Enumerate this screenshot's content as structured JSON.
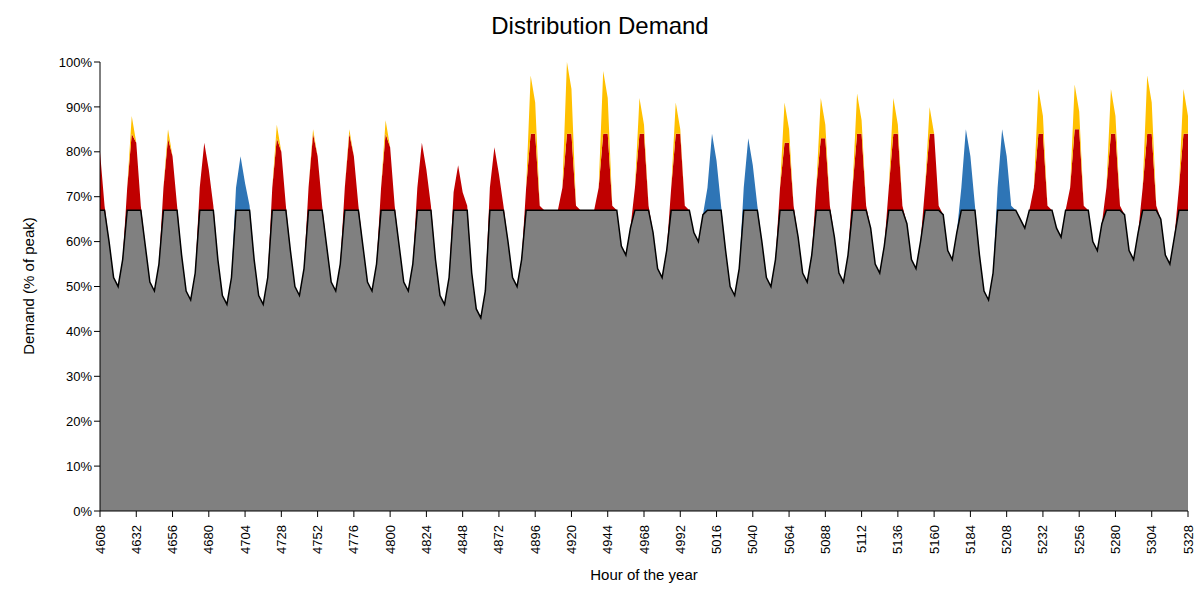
{
  "chart_data": {
    "type": "area",
    "title": "Distribution Demand",
    "x_label": "Hour of the year",
    "y_label": "Demand (% of peak)",
    "stacked": true,
    "grid": false,
    "xlim": [
      4608,
      5328
    ],
    "xticks": [
      4608,
      4632,
      4656,
      4680,
      4704,
      4728,
      4752,
      4776,
      4800,
      4824,
      4848,
      4872,
      4896,
      4920,
      4944,
      4968,
      4992,
      5016,
      5040,
      5064,
      5088,
      5112,
      5136,
      5160,
      5184,
      5208,
      5232,
      5256,
      5280,
      5304,
      5328
    ],
    "ylim": [
      0,
      100
    ],
    "yticks": [
      {
        "value": 0,
        "label": "0%"
      },
      {
        "value": 10,
        "label": "10%"
      },
      {
        "value": 20,
        "label": "20%"
      },
      {
        "value": 30,
        "label": "30%"
      },
      {
        "value": 40,
        "label": "40%"
      },
      {
        "value": 50,
        "label": "50%"
      },
      {
        "value": 60,
        "label": "60%"
      },
      {
        "value": 70,
        "label": "70%"
      },
      {
        "value": 80,
        "label": "80%"
      },
      {
        "value": 90,
        "label": "90%"
      },
      {
        "value": 100,
        "label": "100%"
      }
    ],
    "x": [
      4608,
      4611,
      4614,
      4617,
      4620,
      4623,
      4626,
      4629,
      4632,
      4635,
      4638,
      4641,
      4644,
      4647,
      4650,
      4653,
      4656,
      4659,
      4662,
      4665,
      4668,
      4671,
      4674,
      4677,
      4680,
      4683,
      4686,
      4689,
      4692,
      4695,
      4698,
      4701,
      4704,
      4707,
      4710,
      4713,
      4716,
      4719,
      4722,
      4725,
      4728,
      4731,
      4734,
      4737,
      4740,
      4743,
      4746,
      4749,
      4752,
      4755,
      4758,
      4761,
      4764,
      4767,
      4770,
      4773,
      4776,
      4779,
      4782,
      4785,
      4788,
      4791,
      4794,
      4797,
      4800,
      4803,
      4806,
      4809,
      4812,
      4815,
      4818,
      4821,
      4824,
      4827,
      4830,
      4833,
      4836,
      4839,
      4842,
      4845,
      4848,
      4851,
      4854,
      4857,
      4860,
      4863,
      4866,
      4869,
      4872,
      4875,
      4878,
      4881,
      4884,
      4887,
      4890,
      4893,
      4896,
      4899,
      4902,
      4905,
      4908,
      4911,
      4914,
      4917,
      4920,
      4923,
      4926,
      4929,
      4932,
      4935,
      4938,
      4941,
      4944,
      4947,
      4950,
      4953,
      4956,
      4959,
      4962,
      4965,
      4968,
      4971,
      4974,
      4977,
      4980,
      4983,
      4986,
      4989,
      4992,
      4995,
      4998,
      5001,
      5004,
      5007,
      5010,
      5013,
      5016,
      5019,
      5022,
      5025,
      5028,
      5031,
      5034,
      5037,
      5040,
      5043,
      5046,
      5049,
      5052,
      5055,
      5058,
      5061,
      5064,
      5067,
      5070,
      5073,
      5076,
      5079,
      5082,
      5085,
      5088,
      5091,
      5094,
      5097,
      5100,
      5103,
      5106,
      5109,
      5112,
      5115,
      5118,
      5121,
      5124,
      5127,
      5130,
      5133,
      5136,
      5139,
      5142,
      5145,
      5148,
      5151,
      5154,
      5157,
      5160,
      5163,
      5166,
      5169,
      5172,
      5175,
      5178,
      5181,
      5184,
      5187,
      5190,
      5193,
      5196,
      5199,
      5202,
      5205,
      5208,
      5211,
      5214,
      5217,
      5220,
      5223,
      5226,
      5229,
      5232,
      5235,
      5238,
      5241,
      5244,
      5247,
      5250,
      5253,
      5256,
      5259,
      5262,
      5265,
      5268,
      5271,
      5274,
      5277,
      5280,
      5283,
      5286,
      5289,
      5292,
      5295,
      5298,
      5301,
      5304,
      5307,
      5310,
      5313,
      5316,
      5319,
      5322,
      5325,
      5328
    ],
    "series": [
      {
        "color": "#808080",
        "values": [
          67,
          67,
          60,
          52,
          50,
          56,
          67,
          67,
          67,
          67,
          59,
          51,
          49,
          55,
          67,
          67,
          67,
          67,
          57,
          49,
          47,
          53,
          67,
          67,
          67,
          67,
          56,
          48,
          46,
          52,
          67,
          67,
          67,
          67,
          56,
          48,
          46,
          52,
          67,
          67,
          67,
          67,
          58,
          50,
          48,
          54,
          67,
          67,
          67,
          67,
          59,
          51,
          49,
          55,
          67,
          67,
          67,
          67,
          59,
          51,
          49,
          55,
          67,
          67,
          67,
          67,
          59,
          51,
          49,
          55,
          67,
          67,
          67,
          67,
          56,
          48,
          46,
          52,
          67,
          67,
          67,
          67,
          53,
          45,
          43,
          49,
          67,
          67,
          67,
          67,
          60,
          52,
          50,
          56,
          67,
          67,
          67,
          67,
          67,
          67,
          67,
          67,
          67,
          67,
          67,
          67,
          67,
          67,
          67,
          67,
          67,
          67,
          67,
          67,
          67,
          59,
          57,
          63,
          67,
          67,
          67,
          67,
          62,
          54,
          52,
          58,
          67,
          67,
          67,
          67,
          67,
          62,
          60,
          66,
          67,
          67,
          67,
          67,
          58,
          50,
          48,
          54,
          67,
          67,
          67,
          67,
          60,
          52,
          50,
          56,
          67,
          67,
          67,
          67,
          61,
          53,
          51,
          57,
          67,
          67,
          67,
          67,
          61,
          53,
          51,
          57,
          67,
          67,
          67,
          67,
          63,
          55,
          53,
          59,
          67,
          67,
          67,
          67,
          64,
          56,
          54,
          60,
          67,
          67,
          67,
          67,
          66,
          58,
          56,
          62,
          67,
          67,
          67,
          67,
          57,
          49,
          47,
          53,
          67,
          67,
          67,
          67,
          67,
          65,
          63,
          67,
          67,
          67,
          67,
          67,
          67,
          63,
          61,
          67,
          67,
          67,
          67,
          67,
          67,
          60,
          58,
          64,
          67,
          67,
          67,
          67,
          66,
          58,
          56,
          62,
          67,
          67,
          67,
          67,
          65,
          57,
          55,
          61,
          67,
          67,
          67
        ]
      },
      {
        "color": "#2e75b6",
        "values": [
          0,
          0,
          0,
          0,
          0,
          0,
          0,
          0,
          0,
          0,
          0,
          0,
          0,
          0,
          0,
          0,
          0,
          0,
          0,
          0,
          0,
          0,
          0,
          0,
          0,
          0,
          0,
          0,
          0,
          0,
          5,
          12,
          6,
          1,
          0,
          0,
          0,
          0,
          0,
          0,
          0,
          0,
          0,
          0,
          0,
          0,
          0,
          0,
          0,
          0,
          0,
          0,
          0,
          0,
          0,
          0,
          0,
          0,
          0,
          0,
          0,
          0,
          0,
          0,
          0,
          0,
          0,
          0,
          0,
          0,
          0,
          0,
          0,
          0,
          0,
          0,
          0,
          0,
          0,
          0,
          0,
          0,
          0,
          0,
          0,
          0,
          0,
          0,
          0,
          0,
          0,
          0,
          0,
          0,
          0,
          0,
          0,
          0,
          0,
          0,
          0,
          0,
          0,
          0,
          0,
          0,
          0,
          0,
          0,
          0,
          0,
          0,
          0,
          0,
          0,
          0,
          0,
          0,
          0,
          0,
          0,
          0,
          0,
          0,
          0,
          0,
          0,
          0,
          0,
          0,
          0,
          0,
          0,
          0,
          5,
          17,
          11,
          1,
          0,
          0,
          0,
          0,
          5,
          16,
          10,
          1,
          0,
          0,
          0,
          0,
          0,
          0,
          0,
          0,
          0,
          0,
          0,
          0,
          0,
          0,
          0,
          0,
          0,
          0,
          0,
          0,
          0,
          0,
          0,
          0,
          0,
          0,
          0,
          0,
          0,
          0,
          0,
          0,
          0,
          0,
          0,
          0,
          0,
          0,
          0,
          0,
          0,
          0,
          0,
          0,
          5,
          18,
          12,
          1,
          0,
          0,
          0,
          0,
          5,
          18,
          12,
          1,
          0,
          0,
          0,
          0,
          0,
          0,
          0,
          0,
          0,
          0,
          0,
          0,
          0,
          0,
          0,
          0,
          0,
          0,
          0,
          0,
          0,
          0,
          0,
          0,
          0,
          0,
          0,
          0,
          0,
          0,
          0,
          0,
          0,
          0,
          0,
          0,
          0,
          0,
          0
        ]
      },
      {
        "color": "#c00000",
        "values": [
          13,
          1,
          0,
          0,
          0,
          0,
          5,
          17,
          15,
          1,
          0,
          0,
          0,
          0,
          5,
          16,
          12,
          1,
          0,
          0,
          0,
          0,
          5,
          15,
          9,
          1,
          0,
          0,
          0,
          0,
          0,
          0,
          0,
          0,
          0,
          0,
          0,
          0,
          5,
          16,
          13,
          1,
          0,
          0,
          0,
          0,
          5,
          17,
          12,
          1,
          0,
          0,
          0,
          0,
          5,
          17,
          12,
          1,
          0,
          0,
          0,
          0,
          5,
          17,
          14,
          1,
          0,
          0,
          0,
          0,
          5,
          15,
          9,
          1,
          0,
          0,
          0,
          0,
          4,
          10,
          4,
          1,
          0,
          0,
          0,
          0,
          5,
          14,
          8,
          1,
          0,
          0,
          0,
          0,
          5,
          17,
          17,
          1,
          0,
          0,
          0,
          0,
          5,
          17,
          17,
          1,
          0,
          0,
          0,
          0,
          5,
          17,
          17,
          1,
          0,
          0,
          0,
          0,
          5,
          17,
          17,
          1,
          0,
          0,
          0,
          0,
          5,
          17,
          17,
          1,
          0,
          0,
          0,
          0,
          0,
          0,
          0,
          0,
          0,
          0,
          0,
          0,
          0,
          0,
          0,
          0,
          0,
          0,
          0,
          0,
          5,
          15,
          15,
          1,
          0,
          0,
          0,
          0,
          5,
          16,
          16,
          1,
          0,
          0,
          0,
          0,
          5,
          17,
          17,
          1,
          0,
          0,
          0,
          0,
          5,
          17,
          17,
          1,
          0,
          0,
          0,
          0,
          5,
          17,
          17,
          1,
          0,
          0,
          0,
          0,
          0,
          0,
          0,
          0,
          0,
          0,
          0,
          0,
          0,
          0,
          0,
          0,
          0,
          0,
          0,
          0,
          5,
          17,
          17,
          1,
          0,
          0,
          0,
          0,
          5,
          18,
          18,
          1,
          0,
          0,
          0,
          0,
          5,
          17,
          17,
          1,
          0,
          0,
          0,
          0,
          5,
          17,
          17,
          1,
          0,
          0,
          0,
          0,
          5,
          17,
          17
        ]
      },
      {
        "color": "#ffc000",
        "values": [
          0,
          0,
          0,
          0,
          0,
          0,
          0,
          4,
          0,
          0,
          0,
          0,
          0,
          0,
          0,
          2,
          0,
          0,
          0,
          0,
          0,
          0,
          0,
          0,
          0,
          0,
          0,
          0,
          0,
          0,
          0,
          0,
          0,
          0,
          0,
          0,
          0,
          0,
          0,
          3,
          0,
          0,
          0,
          0,
          0,
          0,
          0,
          1,
          0,
          0,
          0,
          0,
          0,
          0,
          0,
          1,
          0,
          0,
          0,
          0,
          0,
          0,
          0,
          3,
          0,
          0,
          0,
          0,
          0,
          0,
          0,
          0,
          0,
          0,
          0,
          0,
          0,
          0,
          0,
          0,
          0,
          0,
          0,
          0,
          0,
          0,
          0,
          0,
          0,
          0,
          0,
          0,
          0,
          0,
          0,
          13,
          7,
          0,
          0,
          0,
          0,
          0,
          0,
          16,
          10,
          0,
          0,
          0,
          0,
          0,
          0,
          14,
          8,
          0,
          0,
          0,
          0,
          0,
          0,
          8,
          2,
          0,
          0,
          0,
          0,
          0,
          0,
          7,
          1,
          0,
          0,
          0,
          0,
          0,
          0,
          0,
          0,
          0,
          0,
          0,
          0,
          0,
          0,
          0,
          0,
          0,
          0,
          0,
          0,
          0,
          0,
          9,
          3,
          0,
          0,
          0,
          0,
          0,
          0,
          9,
          3,
          0,
          0,
          0,
          0,
          0,
          0,
          9,
          3,
          0,
          0,
          0,
          0,
          0,
          0,
          8,
          2,
          0,
          0,
          0,
          0,
          0,
          0,
          6,
          0,
          0,
          0,
          0,
          0,
          0,
          0,
          0,
          0,
          0,
          0,
          0,
          0,
          0,
          0,
          0,
          0,
          0,
          0,
          0,
          0,
          0,
          0,
          10,
          4,
          0,
          0,
          0,
          0,
          0,
          0,
          10,
          4,
          0,
          0,
          0,
          0,
          0,
          0,
          10,
          4,
          0,
          0,
          0,
          0,
          0,
          0,
          13,
          7,
          0,
          0,
          0,
          0,
          0,
          0,
          10,
          4
        ]
      }
    ]
  }
}
